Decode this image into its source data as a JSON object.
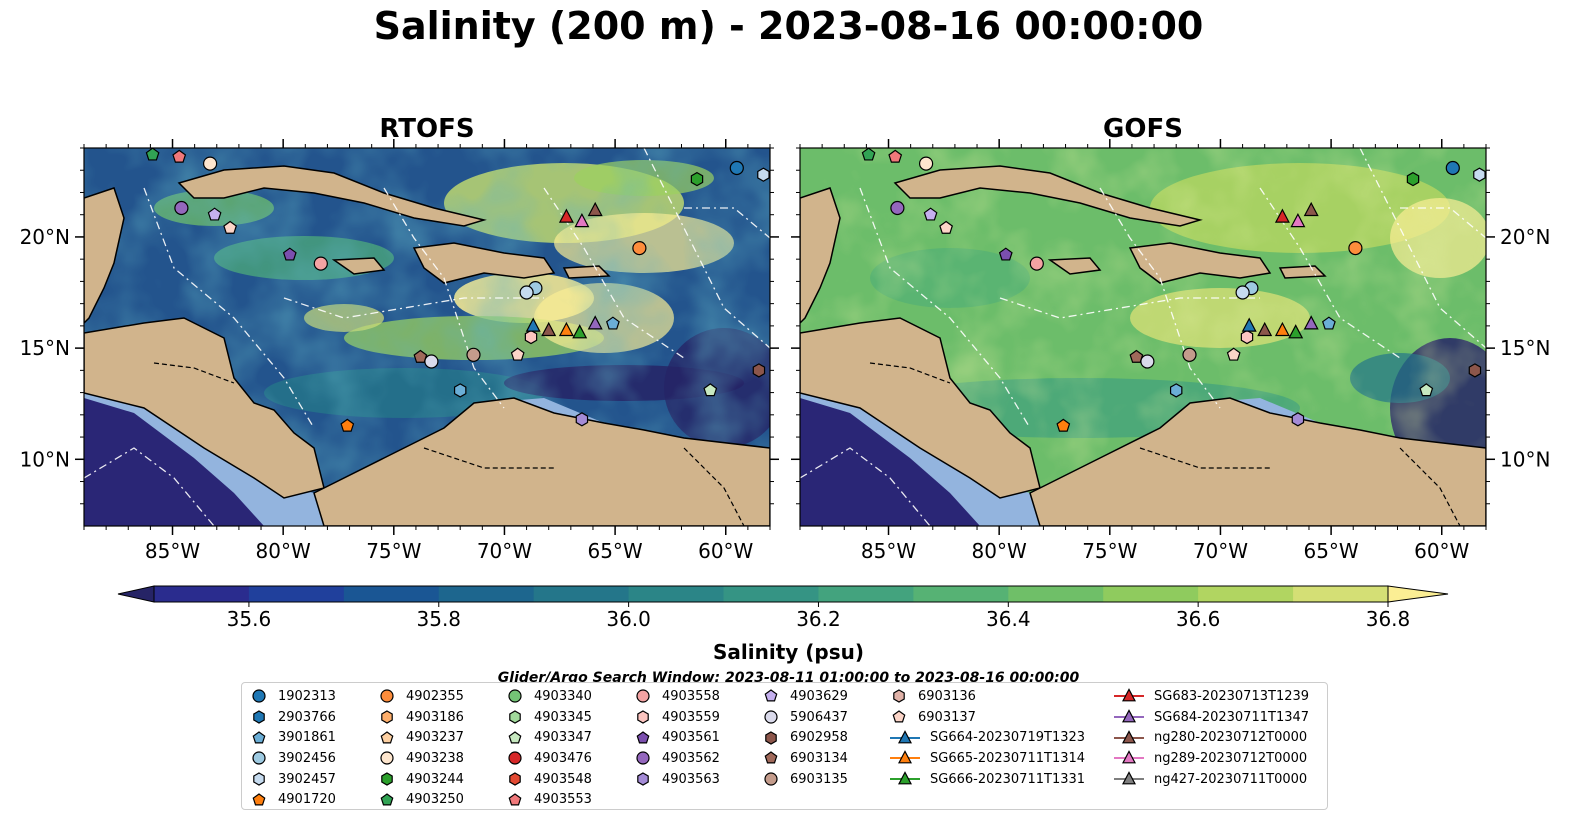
{
  "title": "Salinity (200 m) - 2023-08-16 00:00:00",
  "panels": [
    {
      "title": "RTOFS"
    },
    {
      "title": "GOFS"
    }
  ],
  "axes": {
    "x_ticks": [
      "85°W",
      "80°W",
      "75°W",
      "70°W",
      "65°W",
      "60°W"
    ],
    "y_ticks": [
      "20°N",
      "15°N",
      "10°N"
    ],
    "lon_range": [
      -89,
      -58
    ],
    "lat_range": [
      7,
      24
    ]
  },
  "colorbar": {
    "label": "Salinity (psu)",
    "ticks": [
      "35.6",
      "35.8",
      "36.0",
      "36.2",
      "36.4",
      "36.6",
      "36.8"
    ],
    "range": [
      35.5,
      36.9
    ],
    "extend": "both",
    "colors": [
      "#262466",
      "#2a2c8e",
      "#20409c",
      "#1a5694",
      "#1d668e",
      "#24768a",
      "#2b8587",
      "#359484",
      "#43a37e",
      "#56b274",
      "#6fbf68",
      "#8fcb5e",
      "#b1d561",
      "#d4df75",
      "#fbee94"
    ]
  },
  "colors": {
    "land": "#d1b48c",
    "shelf": "#93b4de",
    "deep": "#2c2a78",
    "ocean_rtofs": "#1f6b8c",
    "ocean_gofs": "#6cbd6a"
  },
  "search_window": "Glider/Argo Search Window: 2023-08-11 01:00:00 to 2023-08-16 00:00:00",
  "legend": {
    "columns": [
      [
        {
          "label": "1902313",
          "marker": "circle",
          "color": "#1f77b4"
        },
        {
          "label": "2903766",
          "marker": "hexagon",
          "color": "#1f77b4"
        },
        {
          "label": "3901861",
          "marker": "pentagon",
          "color": "#6baed6"
        },
        {
          "label": "3902456",
          "marker": "circle",
          "color": "#9ecae1"
        },
        {
          "label": "3902457",
          "marker": "hexagon",
          "color": "#c6dbef"
        },
        {
          "label": "4901720",
          "marker": "pentagon",
          "color": "#ff7f0e"
        }
      ],
      [
        {
          "label": "4902355",
          "marker": "circle",
          "color": "#fd8d3c"
        },
        {
          "label": "4903186",
          "marker": "hexagon",
          "color": "#fdae6b"
        },
        {
          "label": "4903237",
          "marker": "pentagon",
          "color": "#fdd0a2"
        },
        {
          "label": "4903238",
          "marker": "circle",
          "color": "#fee6ce"
        },
        {
          "label": "4903244",
          "marker": "hexagon",
          "color": "#2ca02c"
        },
        {
          "label": "4903250",
          "marker": "pentagon",
          "color": "#31a354"
        }
      ],
      [
        {
          "label": "4903340",
          "marker": "circle",
          "color": "#74c476"
        },
        {
          "label": "4903345",
          "marker": "hexagon",
          "color": "#a1d99b"
        },
        {
          "label": "4903347",
          "marker": "pentagon",
          "color": "#c7e9c0"
        },
        {
          "label": "4903476",
          "marker": "circle",
          "color": "#d62728"
        },
        {
          "label": "4903548",
          "marker": "hexagon",
          "color": "#e34a33"
        },
        {
          "label": "4903553",
          "marker": "pentagon",
          "color": "#f0787a"
        }
      ],
      [
        {
          "label": "4903558",
          "marker": "circle",
          "color": "#f4a3a3"
        },
        {
          "label": "4903559",
          "marker": "hexagon",
          "color": "#fcc5c0"
        },
        {
          "label": "4903561",
          "marker": "pentagon",
          "color": "#7b4fae"
        },
        {
          "label": "4903562",
          "marker": "circle",
          "color": "#9467bd"
        },
        {
          "label": "4903563",
          "marker": "hexagon",
          "color": "#a48bd6"
        }
      ],
      [
        {
          "label": "4903629",
          "marker": "pentagon",
          "color": "#c5b0ef"
        },
        {
          "label": "5906437",
          "marker": "circle",
          "color": "#dadaeb"
        },
        {
          "label": "6902958",
          "marker": "hexagon",
          "color": "#8c564b"
        },
        {
          "label": "6903134",
          "marker": "pentagon",
          "color": "#a0695a"
        },
        {
          "label": "6903135",
          "marker": "circle",
          "color": "#c49c8c"
        }
      ],
      [
        {
          "label": "6903136",
          "marker": "hexagon",
          "color": "#e0b2a8"
        },
        {
          "label": "6903137",
          "marker": "pentagon",
          "color": "#fcd5c8"
        },
        {
          "label": "SG664-20230719T1323",
          "marker": "triangle-line",
          "color": "#1f77b4"
        },
        {
          "label": "SG665-20230711T1314",
          "marker": "triangle-line",
          "color": "#ff7f0e"
        },
        {
          "label": "SG666-20230711T1331",
          "marker": "triangle-line",
          "color": "#2ca02c"
        }
      ],
      [
        {
          "label": "SG683-20230713T1239",
          "marker": "triangle-line",
          "color": "#d62728"
        },
        {
          "label": "SG684-20230711T1347",
          "marker": "triangle-line",
          "color": "#9467bd"
        },
        {
          "label": "ng280-20230712T0000",
          "marker": "triangle-line",
          "color": "#8c564b"
        },
        {
          "label": "ng289-20230712T0000",
          "marker": "triangle-line",
          "color": "#e377c2"
        },
        {
          "label": "ng427-20230711T0000",
          "marker": "triangle-line",
          "color": "#7f7f7f"
        }
      ]
    ]
  },
  "markers": [
    {
      "lon": -59.5,
      "lat": 23.1,
      "shape": "circle",
      "color": "#1f77b4"
    },
    {
      "lon": -58.3,
      "lat": 22.8,
      "shape": "hexagon",
      "color": "#c6dbef"
    },
    {
      "lon": -61.3,
      "lat": 22.6,
      "shape": "hexagon",
      "color": "#2ca02c"
    },
    {
      "lon": -85.9,
      "lat": 23.7,
      "shape": "pentagon",
      "color": "#31a354"
    },
    {
      "lon": -84.7,
      "lat": 23.6,
      "shape": "pentagon",
      "color": "#f0787a"
    },
    {
      "lon": -83.3,
      "lat": 23.3,
      "shape": "circle",
      "color": "#fee6ce"
    },
    {
      "lon": -84.6,
      "lat": 21.3,
      "shape": "circle",
      "color": "#9467bd"
    },
    {
      "lon": -83.1,
      "lat": 21.0,
      "shape": "pentagon",
      "color": "#c5b0ef"
    },
    {
      "lon": -82.4,
      "lat": 20.4,
      "shape": "pentagon",
      "color": "#fcd5c8"
    },
    {
      "lon": -79.7,
      "lat": 19.2,
      "shape": "pentagon",
      "color": "#7b4fae"
    },
    {
      "lon": -78.3,
      "lat": 18.8,
      "shape": "circle",
      "color": "#f4a3a3"
    },
    {
      "lon": -63.9,
      "lat": 19.5,
      "shape": "circle",
      "color": "#fd8d3c"
    },
    {
      "lon": -68.6,
      "lat": 17.7,
      "shape": "circle",
      "color": "#9ecae1"
    },
    {
      "lon": -69.0,
      "lat": 17.5,
      "shape": "circle",
      "color": "#c6dbef"
    },
    {
      "lon": -65.1,
      "lat": 16.1,
      "shape": "pentagon",
      "color": "#6baed6"
    },
    {
      "lon": -68.8,
      "lat": 15.5,
      "shape": "hexagon",
      "color": "#fcc5c0"
    },
    {
      "lon": -73.8,
      "lat": 14.6,
      "shape": "pentagon",
      "color": "#a0695a"
    },
    {
      "lon": -73.3,
      "lat": 14.4,
      "shape": "circle",
      "color": "#dadaeb"
    },
    {
      "lon": -71.4,
      "lat": 14.7,
      "shape": "circle",
      "color": "#c49c8c"
    },
    {
      "lon": -69.4,
      "lat": 14.7,
      "shape": "pentagon",
      "color": "#fcd5c8"
    },
    {
      "lon": -72.0,
      "lat": 13.1,
      "shape": "hexagon",
      "color": "#6baed6"
    },
    {
      "lon": -77.1,
      "lat": 11.5,
      "shape": "pentagon",
      "color": "#ff7f0e"
    },
    {
      "lon": -66.5,
      "lat": 11.8,
      "shape": "hexagon",
      "color": "#a48bd6"
    },
    {
      "lon": -60.7,
      "lat": 13.1,
      "shape": "pentagon",
      "color": "#c7e9c0"
    },
    {
      "lon": -58.5,
      "lat": 14.0,
      "shape": "hexagon",
      "color": "#8c564b"
    },
    {
      "lon": -67.2,
      "lat": 20.9,
      "shape": "triangle",
      "color": "#d62728"
    },
    {
      "lon": -66.5,
      "lat": 20.7,
      "shape": "triangle",
      "color": "#e377c2"
    },
    {
      "lon": -65.9,
      "lat": 21.2,
      "shape": "triangle",
      "color": "#8c564b"
    },
    {
      "lon": -68.7,
      "lat": 16.0,
      "shape": "triangle",
      "color": "#1f77b4"
    },
    {
      "lon": -68.0,
      "lat": 15.8,
      "shape": "triangle",
      "color": "#8c564b"
    },
    {
      "lon": -67.2,
      "lat": 15.8,
      "shape": "triangle",
      "color": "#ff7f0e"
    },
    {
      "lon": -66.6,
      "lat": 15.7,
      "shape": "triangle",
      "color": "#2ca02c"
    },
    {
      "lon": -65.9,
      "lat": 16.1,
      "shape": "triangle",
      "color": "#9467bd"
    }
  ]
}
